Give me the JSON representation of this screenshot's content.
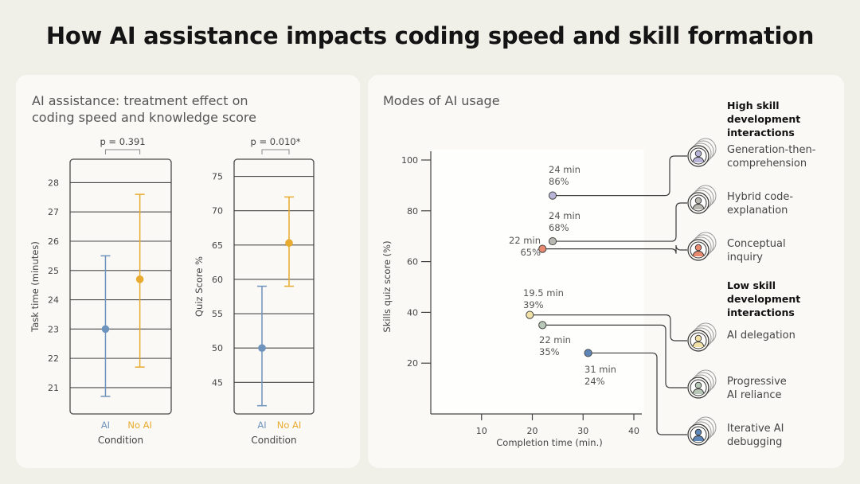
{
  "title": "How AI assistance impacts coding speed and skill formation",
  "left_panel": {
    "title_line1": "AI assistance: treatment effect on",
    "title_line2": "coding speed and knowledge score"
  },
  "right_panel": {
    "title": "Modes of AI usage",
    "high_heading": [
      "High skill",
      "development",
      "interactions"
    ],
    "low_heading": [
      "Low skill",
      "development",
      "interactions"
    ]
  },
  "colors": {
    "ai": "#6e93bc",
    "no_ai": "#e8ab2f",
    "frame": "#4a4a4a",
    "text_gray": "#666666"
  },
  "chart_data": [
    {
      "type": "errorbar",
      "ylabel": "Task time (minutes)",
      "xlabel": "Condition",
      "categories": [
        "AI",
        "No AI"
      ],
      "p_value": "p = 0.391",
      "yticks": [
        21,
        22,
        23,
        24,
        25,
        26,
        27,
        28
      ],
      "ylim": [
        20.1,
        28.8
      ],
      "series": [
        {
          "values": [
            23.0,
            24.7
          ],
          "lower": [
            20.7,
            21.7
          ],
          "upper": [
            25.5,
            27.6
          ]
        }
      ]
    },
    {
      "type": "errorbar",
      "ylabel": "Quiz Score %",
      "xlabel": "Condition",
      "categories": [
        "AI",
        "No AI"
      ],
      "p_value": "p = 0.010*",
      "yticks": [
        45,
        50,
        55,
        60,
        65,
        70,
        75
      ],
      "ylim": [
        40.4,
        77.5
      ],
      "series": [
        {
          "values": [
            50.0,
            65.3
          ],
          "lower": [
            41.6,
            59.0
          ],
          "upper": [
            59.0,
            72.0
          ]
        }
      ]
    },
    {
      "type": "scatter",
      "xlabel": "Completion time (min.)",
      "ylabel": "Skills quiz score (%)",
      "xticks": [
        10,
        20,
        30,
        40
      ],
      "yticks": [
        20,
        40,
        60,
        80,
        100
      ],
      "xlim": [
        0,
        42
      ],
      "ylim": [
        0,
        105
      ],
      "points": [
        {
          "x": 24,
          "y": 86,
          "time_label": "24 min",
          "score_label": "86%",
          "mode": "Generation-then-comprehension",
          "mode_line1": "Generation-then-",
          "mode_line2": "comprehension",
          "group": "high",
          "color": "#b8b5d8"
        },
        {
          "x": 24,
          "y": 68,
          "time_label": "24 min",
          "score_label": "68%",
          "mode": "Hybrid code-explanation",
          "mode_line1": "Hybrid code-",
          "mode_line2": "explanation",
          "group": "high",
          "color": "#b8b8b0"
        },
        {
          "x": 22,
          "y": 65,
          "time_label": "22 min",
          "score_label": "65%",
          "mode": "Conceptual inquiry",
          "mode_line1": "Conceptual",
          "mode_line2": "inquiry",
          "group": "high",
          "color": "#e88a70"
        },
        {
          "x": 19.5,
          "y": 39,
          "time_label": "19.5 min",
          "score_label": "39%",
          "mode": "AI delegation",
          "mode_line1": "AI delegation",
          "mode_line2": "",
          "group": "low",
          "color": "#f2e2a8"
        },
        {
          "x": 22,
          "y": 35,
          "time_label": "22 min",
          "score_label": "35%",
          "mode": "Progressive AI reliance",
          "mode_line1": "Progressive",
          "mode_line2": "AI reliance",
          "group": "low",
          "color": "#b8c8b8"
        },
        {
          "x": 31,
          "y": 24,
          "time_label": "31 min",
          "score_label": "24%",
          "mode": "Iterative AI debugging",
          "mode_line1": "Iterative AI",
          "mode_line2": "debugging",
          "group": "low",
          "color": "#5f86b8"
        }
      ]
    }
  ]
}
